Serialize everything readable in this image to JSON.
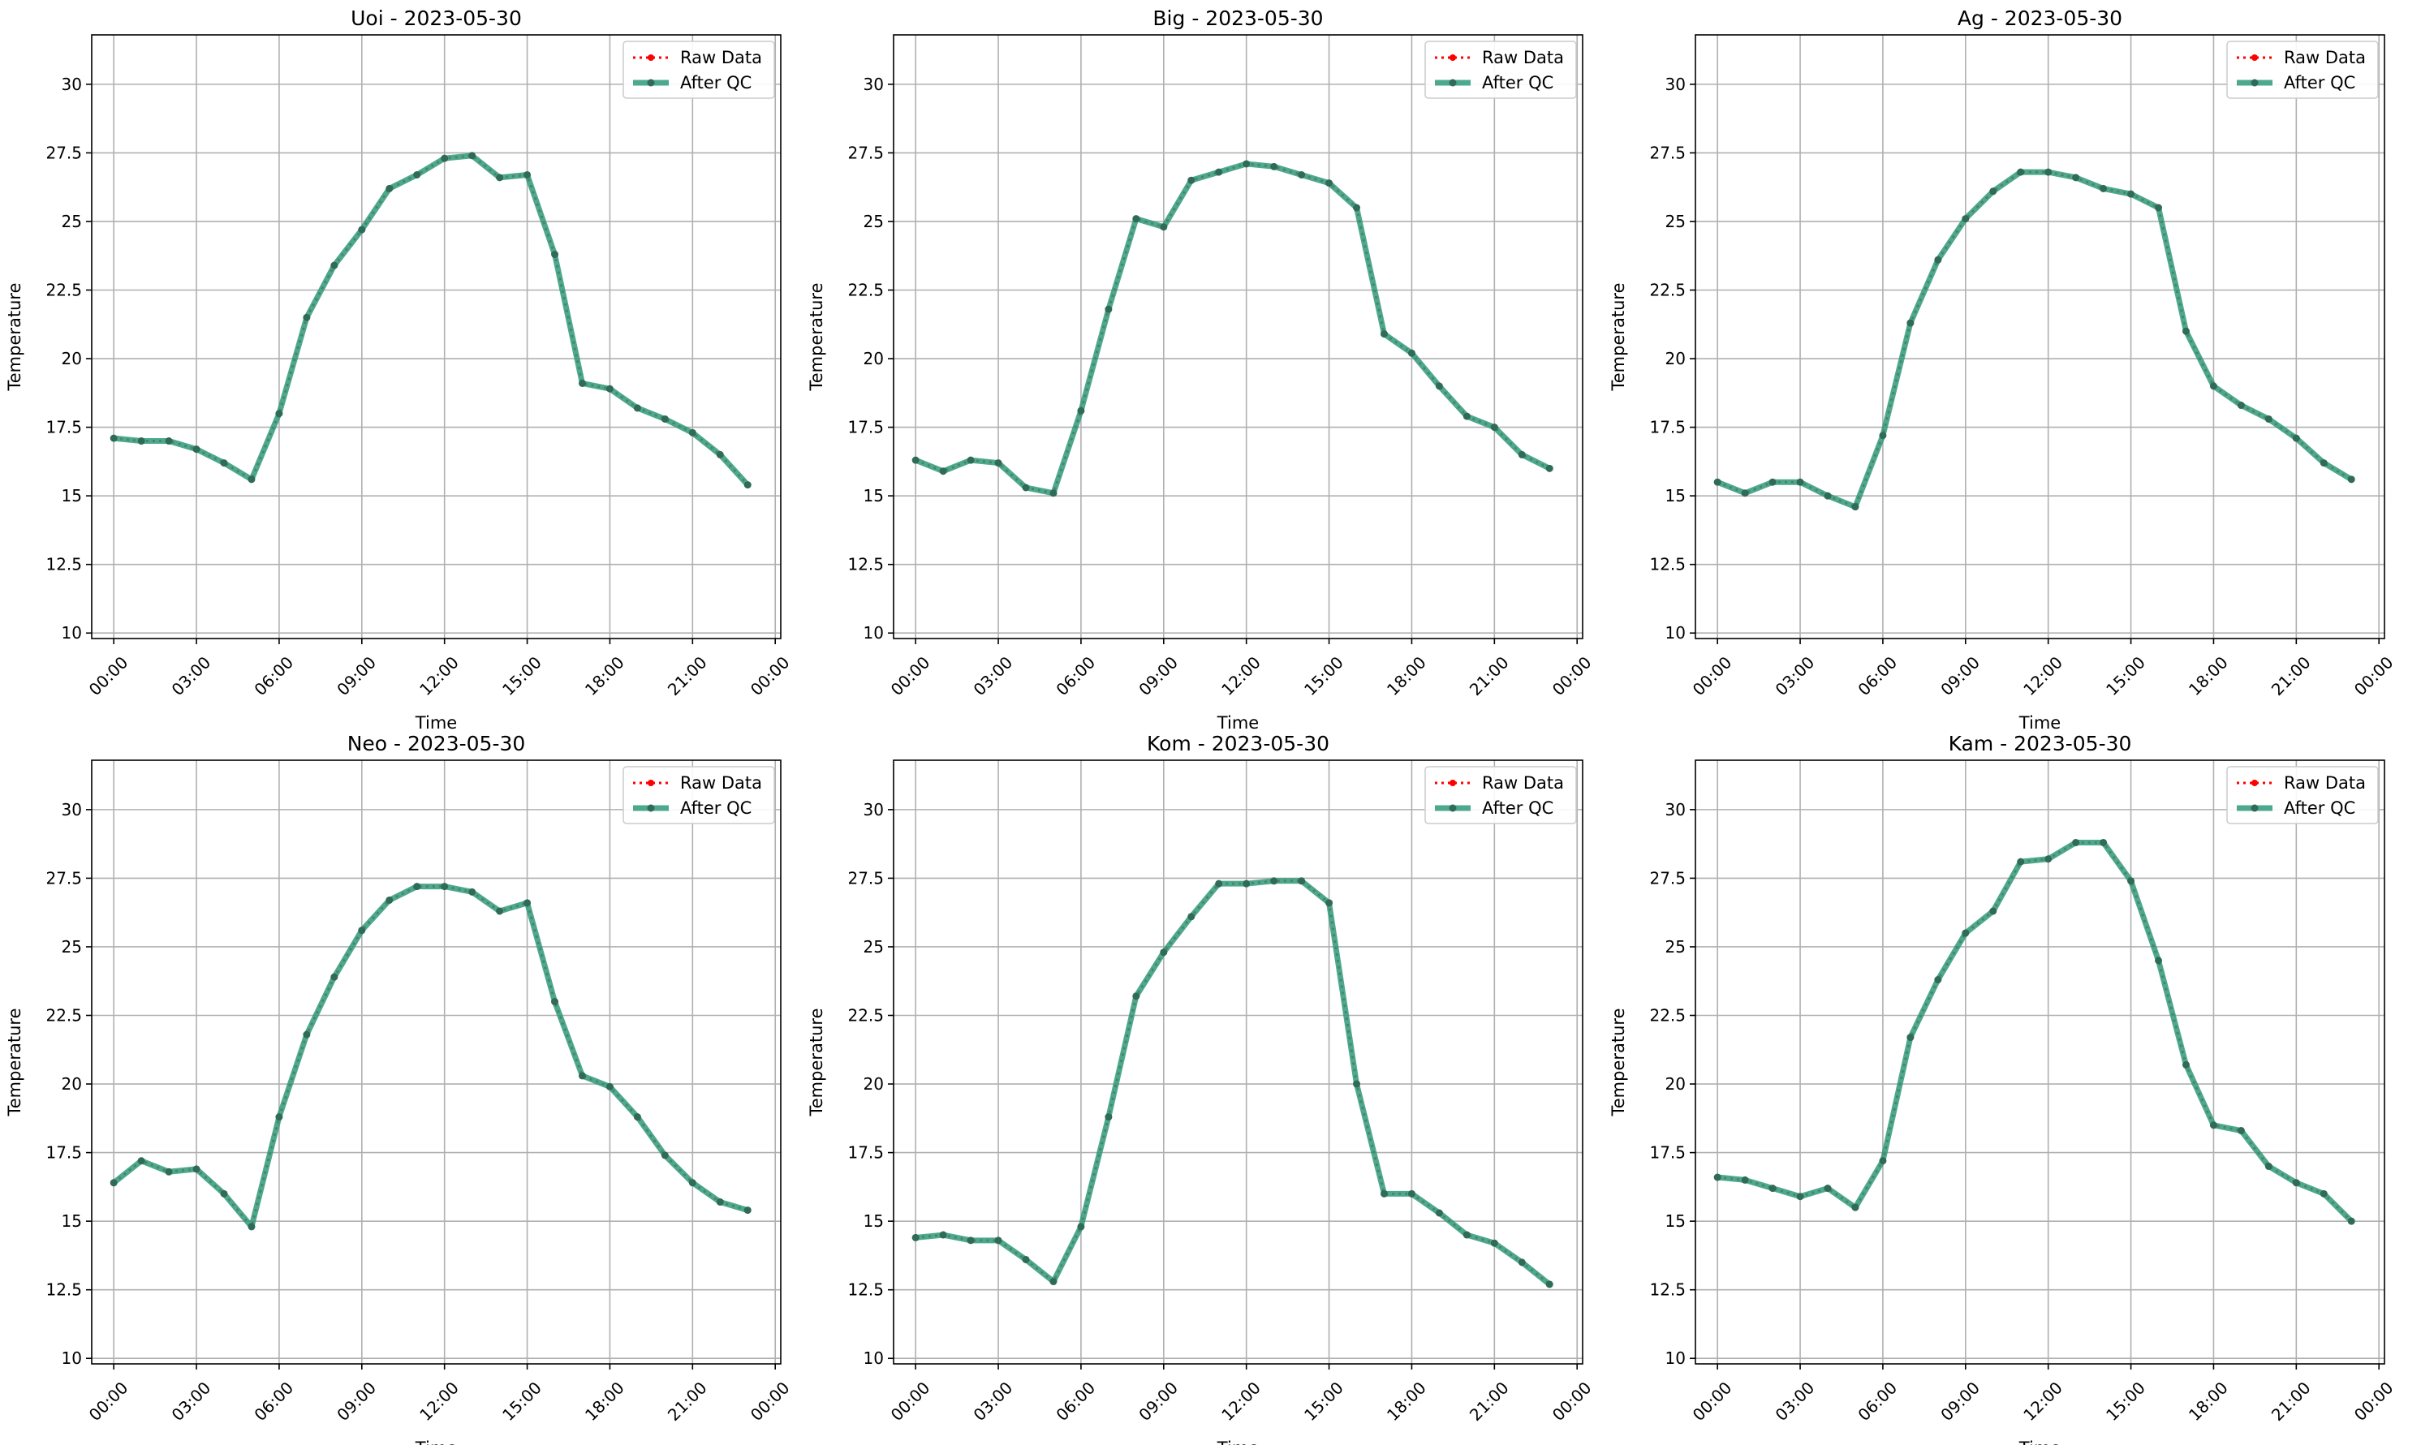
{
  "figure": {
    "xlabel": "Time",
    "ylabel": "Temperature",
    "x_tick_labels": [
      "00:00",
      "03:00",
      "06:00",
      "09:00",
      "12:00",
      "15:00",
      "18:00",
      "21:00",
      "00:00"
    ],
    "legend": {
      "raw_label": "Raw Data",
      "qc_label": "After QC",
      "placement": "top-right"
    },
    "colors": {
      "raw": "#ff0000",
      "qc_line": "#2e9a7a",
      "qc_marker": "#2f6b57",
      "grid": "#b0b0b0"
    }
  },
  "chart_data": [
    {
      "type": "line",
      "title": "Uoi - 2023-05-30",
      "xlabel": "Time",
      "ylabel": "Temperature",
      "x_unit": "hour",
      "x_ticks": [
        0,
        3,
        6,
        9,
        12,
        15,
        18,
        21,
        24
      ],
      "ylim": [
        9.8,
        31.8
      ],
      "y_ticks": [
        10.0,
        12.5,
        15.0,
        17.5,
        20.0,
        22.5,
        25.0,
        27.5,
        30.0
      ],
      "grid": true,
      "legend": "top-right",
      "x": [
        0,
        1,
        2,
        3,
        4,
        5,
        6,
        7,
        8,
        9,
        10,
        11,
        12,
        13,
        14,
        15,
        16,
        17,
        18,
        19,
        20,
        21,
        22,
        23
      ],
      "series": [
        {
          "name": "Raw Data",
          "values": [
            17.1,
            17.0,
            17.0,
            16.7,
            16.2,
            15.6,
            18.0,
            21.5,
            23.4,
            24.7,
            26.2,
            26.7,
            27.3,
            27.4,
            26.6,
            26.7,
            23.8,
            19.1,
            18.9,
            18.2,
            17.8,
            17.3,
            16.5,
            15.4
          ]
        },
        {
          "name": "After QC",
          "values": [
            17.1,
            17.0,
            17.0,
            16.7,
            16.2,
            15.6,
            18.0,
            21.5,
            23.4,
            24.7,
            26.2,
            26.7,
            27.3,
            27.4,
            26.6,
            26.7,
            23.8,
            19.1,
            18.9,
            18.2,
            17.8,
            17.3,
            16.5,
            15.4
          ]
        }
      ]
    },
    {
      "type": "line",
      "title": "Big - 2023-05-30",
      "xlabel": "Time",
      "ylabel": "Temperature",
      "x_unit": "hour",
      "x_ticks": [
        0,
        3,
        6,
        9,
        12,
        15,
        18,
        21,
        24
      ],
      "ylim": [
        9.8,
        31.8
      ],
      "y_ticks": [
        10.0,
        12.5,
        15.0,
        17.5,
        20.0,
        22.5,
        25.0,
        27.5,
        30.0
      ],
      "grid": true,
      "legend": "top-right",
      "x": [
        0,
        1,
        2,
        3,
        4,
        5,
        6,
        7,
        8,
        9,
        10,
        11,
        12,
        13,
        14,
        15,
        16,
        17,
        18,
        19,
        20,
        21,
        22,
        23
      ],
      "series": [
        {
          "name": "Raw Data",
          "values": [
            16.3,
            15.9,
            16.3,
            16.2,
            15.3,
            15.1,
            18.1,
            21.8,
            25.1,
            24.8,
            26.5,
            26.8,
            27.1,
            27.0,
            26.7,
            26.4,
            25.5,
            20.9,
            20.2,
            19.0,
            17.9,
            17.5,
            16.5,
            16.0
          ]
        },
        {
          "name": "After QC",
          "values": [
            16.3,
            15.9,
            16.3,
            16.2,
            15.3,
            15.1,
            18.1,
            21.8,
            25.1,
            24.8,
            26.5,
            26.8,
            27.1,
            27.0,
            26.7,
            26.4,
            25.5,
            20.9,
            20.2,
            19.0,
            17.9,
            17.5,
            16.5,
            16.0
          ]
        }
      ]
    },
    {
      "type": "line",
      "title": "Ag - 2023-05-30",
      "xlabel": "Time",
      "ylabel": "Temperature",
      "x_unit": "hour",
      "x_ticks": [
        0,
        3,
        6,
        9,
        12,
        15,
        18,
        21,
        24
      ],
      "ylim": [
        9.8,
        31.8
      ],
      "y_ticks": [
        10.0,
        12.5,
        15.0,
        17.5,
        20.0,
        22.5,
        25.0,
        27.5,
        30.0
      ],
      "grid": true,
      "legend": "top-right",
      "x": [
        0,
        1,
        2,
        3,
        4,
        5,
        6,
        7,
        8,
        9,
        10,
        11,
        12,
        13,
        14,
        15,
        16,
        17,
        18,
        19,
        20,
        21,
        22,
        23
      ],
      "series": [
        {
          "name": "Raw Data",
          "values": [
            15.5,
            15.1,
            15.5,
            15.5,
            15.0,
            14.6,
            17.2,
            21.3,
            23.6,
            25.1,
            26.1,
            26.8,
            26.8,
            26.6,
            26.2,
            26.0,
            25.5,
            21.0,
            19.0,
            18.3,
            17.8,
            17.1,
            16.2,
            15.6
          ]
        },
        {
          "name": "After QC",
          "values": [
            15.5,
            15.1,
            15.5,
            15.5,
            15.0,
            14.6,
            17.2,
            21.3,
            23.6,
            25.1,
            26.1,
            26.8,
            26.8,
            26.6,
            26.2,
            26.0,
            25.5,
            21.0,
            19.0,
            18.3,
            17.8,
            17.1,
            16.2,
            15.6
          ]
        }
      ]
    },
    {
      "type": "line",
      "title": "Neo - 2023-05-30",
      "xlabel": "Time",
      "ylabel": "Temperature",
      "x_unit": "hour",
      "x_ticks": [
        0,
        3,
        6,
        9,
        12,
        15,
        18,
        21,
        24
      ],
      "ylim": [
        9.8,
        31.8
      ],
      "y_ticks": [
        10.0,
        12.5,
        15.0,
        17.5,
        20.0,
        22.5,
        25.0,
        27.5,
        30.0
      ],
      "grid": true,
      "legend": "top-right",
      "x": [
        0,
        1,
        2,
        3,
        4,
        5,
        6,
        7,
        8,
        9,
        10,
        11,
        12,
        13,
        14,
        15,
        16,
        17,
        18,
        19,
        20,
        21,
        22,
        23
      ],
      "series": [
        {
          "name": "Raw Data",
          "values": [
            16.4,
            17.2,
            16.8,
            16.9,
            16.0,
            14.8,
            18.8,
            21.8,
            23.9,
            25.6,
            26.7,
            27.2,
            27.2,
            27.0,
            26.3,
            26.6,
            23.0,
            20.3,
            19.9,
            18.8,
            17.4,
            16.4,
            15.7,
            15.4
          ]
        },
        {
          "name": "After QC",
          "values": [
            16.4,
            17.2,
            16.8,
            16.9,
            16.0,
            14.8,
            18.8,
            21.8,
            23.9,
            25.6,
            26.7,
            27.2,
            27.2,
            27.0,
            26.3,
            26.6,
            23.0,
            20.3,
            19.9,
            18.8,
            17.4,
            16.4,
            15.7,
            15.4
          ]
        }
      ]
    },
    {
      "type": "line",
      "title": "Kom - 2023-05-30",
      "xlabel": "Time",
      "ylabel": "Temperature",
      "x_unit": "hour",
      "x_ticks": [
        0,
        3,
        6,
        9,
        12,
        15,
        18,
        21,
        24
      ],
      "ylim": [
        9.8,
        31.8
      ],
      "y_ticks": [
        10.0,
        12.5,
        15.0,
        17.5,
        20.0,
        22.5,
        25.0,
        27.5,
        30.0
      ],
      "grid": true,
      "legend": "top-right",
      "x": [
        0,
        1,
        2,
        3,
        4,
        5,
        6,
        7,
        8,
        9,
        10,
        11,
        12,
        13,
        14,
        15,
        16,
        17,
        18,
        19,
        20,
        21,
        22,
        23
      ],
      "series": [
        {
          "name": "Raw Data",
          "values": [
            14.4,
            14.5,
            14.3,
            14.3,
            13.6,
            12.8,
            14.8,
            18.8,
            23.2,
            24.8,
            26.1,
            27.3,
            27.3,
            27.4,
            27.4,
            26.6,
            20.0,
            16.0,
            16.0,
            15.3,
            14.5,
            14.2,
            13.5,
            12.7
          ]
        },
        {
          "name": "After QC",
          "values": [
            14.4,
            14.5,
            14.3,
            14.3,
            13.6,
            12.8,
            14.8,
            18.8,
            23.2,
            24.8,
            26.1,
            27.3,
            27.3,
            27.4,
            27.4,
            26.6,
            20.0,
            16.0,
            16.0,
            15.3,
            14.5,
            14.2,
            13.5,
            12.7
          ]
        }
      ]
    },
    {
      "type": "line",
      "title": "Kam - 2023-05-30",
      "xlabel": "Time",
      "ylabel": "Temperature",
      "x_unit": "hour",
      "x_ticks": [
        0,
        3,
        6,
        9,
        12,
        15,
        18,
        21,
        24
      ],
      "ylim": [
        9.8,
        31.8
      ],
      "y_ticks": [
        10.0,
        12.5,
        15.0,
        17.5,
        20.0,
        22.5,
        25.0,
        27.5,
        30.0
      ],
      "grid": true,
      "legend": "top-right",
      "x": [
        0,
        1,
        2,
        3,
        4,
        5,
        6,
        7,
        8,
        9,
        10,
        11,
        12,
        13,
        14,
        15,
        16,
        17,
        18,
        19,
        20,
        21,
        22,
        23
      ],
      "series": [
        {
          "name": "Raw Data",
          "values": [
            16.6,
            16.5,
            16.2,
            15.9,
            16.2,
            15.5,
            17.2,
            21.7,
            23.8,
            25.5,
            26.3,
            28.1,
            28.2,
            28.8,
            28.8,
            27.4,
            24.5,
            20.7,
            18.5,
            18.3,
            17.0,
            16.4,
            16.0,
            15.0
          ]
        },
        {
          "name": "After QC",
          "values": [
            16.6,
            16.5,
            16.2,
            15.9,
            16.2,
            15.5,
            17.2,
            21.7,
            23.8,
            25.5,
            26.3,
            28.1,
            28.2,
            28.8,
            28.8,
            27.4,
            24.5,
            20.7,
            18.5,
            18.3,
            17.0,
            16.4,
            16.0,
            15.0
          ]
        }
      ]
    }
  ]
}
